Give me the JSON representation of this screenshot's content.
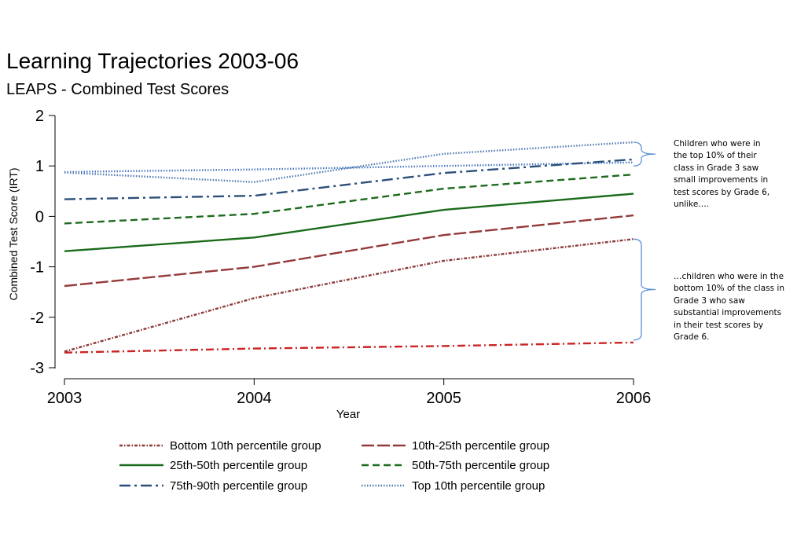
{
  "title": "Learning Trajectories 2003-06",
  "subtitle": "LEAPS - Combined Test Scores",
  "annotations": {
    "top": "Children who were in\nthe top 10% of their\nclass in Grade 3 saw\nsmall improvements in\ntest scores by Grade 6,\nunlike….",
    "bottom": "…children who were in the\nbottom 10% of the class in\nGrade 3 who saw\nsubstantial improvements\nin their test scores by\nGrade 6."
  },
  "chart_data": {
    "type": "line",
    "title": "Learning Trajectories 2003-06",
    "subtitle": "LEAPS - Combined Test Scores",
    "xlabel": "Year",
    "ylabel": "Combined Test Score (IRT)",
    "x": [
      2003,
      2004,
      2005,
      2006
    ],
    "xticks": [
      "2003",
      "2004",
      "2005",
      "2006"
    ],
    "yticks": [
      "2",
      "1",
      "0",
      "-1",
      "-2",
      "-3"
    ],
    "ylim": [
      -3,
      2
    ],
    "grid": false,
    "legend_position": "bottom",
    "series": [
      {
        "name": "Bottom 10th percentile group",
        "values": [
          -2.68,
          -1.62,
          -0.88,
          -0.45
        ],
        "color": "#8b3a3a",
        "dash": "dashdot-small"
      },
      {
        "name": "10th-25th percentile group",
        "values": [
          -1.38,
          -1.0,
          -0.37,
          0.02
        ],
        "color": "#943a3a",
        "dash": "longdash"
      },
      {
        "name": "25th-50th percentile group",
        "values": [
          -0.69,
          -0.42,
          0.13,
          0.45
        ],
        "color": "#1a6b1a",
        "dash": "solid"
      },
      {
        "name": "50th-75th percentile group",
        "values": [
          -0.14,
          0.05,
          0.55,
          0.83
        ],
        "color": "#1e6b1e",
        "dash": "dash"
      },
      {
        "name": "75th-90th percentile group",
        "values": [
          0.34,
          0.41,
          0.86,
          1.13
        ],
        "color": "#2b4f7a",
        "dash": "longdashdot"
      },
      {
        "name": "Top 10th percentile group",
        "values": [
          0.87,
          0.68,
          1.24,
          1.47
        ],
        "color": "#4f79b0",
        "dash": "dot"
      }
    ],
    "extra_series": [
      {
        "values": [
          -2.7,
          -2.62,
          -2.57,
          -2.5
        ],
        "color": "#cc2222",
        "dash": "dashdot"
      },
      {
        "values": [
          0.88,
          0.93,
          1.0,
          1.07
        ],
        "color": "#4a78c0",
        "dash": "dot"
      }
    ],
    "brace_color": "#5b8fd6"
  }
}
